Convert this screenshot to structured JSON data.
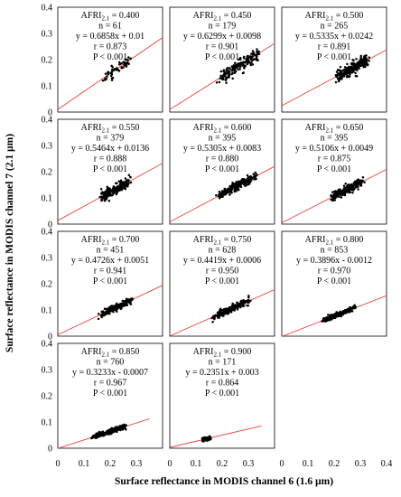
{
  "chart_data": {
    "type": "scatter",
    "layout": "small-multiples 4x3",
    "xlabel": "Surface reflectance in MODIS channel 6 (1.6 µm)",
    "ylabel": "Surface reflectance in MODIS channel 7 (2.1 µm)",
    "xlim": [
      0,
      0.4
    ],
    "ylim": [
      0,
      0.4
    ],
    "xticks": [
      "0",
      "0.1",
      "0.2",
      "0.3",
      "0.4"
    ],
    "yticks": [
      "0",
      "0.1",
      "0.2",
      "0.3",
      "0.4"
    ],
    "x_tick_row_labels": [
      "0",
      "0.1",
      "0.2",
      "0.3",
      "0",
      "0.1",
      "0.2",
      "0.3",
      "0",
      "0.1",
      "0.2",
      "0.3",
      "0.4"
    ],
    "y_tick_col_labels": [
      "0",
      "0.1",
      "0.2",
      "0.3",
      "0.4"
    ],
    "point_color": "#000000",
    "line_color": "#e8463c",
    "panels": [
      {
        "afri_label": "AFRI",
        "afri_sub": "2.1",
        "afri": "0.400",
        "n": "61",
        "eq": "y = 0.6858x + 0.01",
        "r": "0.873",
        "p": "P < 0.001",
        "slope": 0.6858,
        "intercept": 0.01,
        "points": {
          "x_range": [
            0.16,
            0.29
          ],
          "count": 61,
          "slope": 0.6858,
          "intercept": 0.01,
          "spread": 0.012
        }
      },
      {
        "afri_label": "AFRI",
        "afri_sub": "2.1",
        "afri": "0.450",
        "n": "179",
        "eq": "y = 0.6299x + 0.0098",
        "r": "0.901",
        "p": "P < 0.001",
        "slope": 0.6299,
        "intercept": 0.0098,
        "points": {
          "x_range": [
            0.16,
            0.37
          ],
          "count": 179,
          "slope": 0.6299,
          "intercept": 0.0098,
          "spread": 0.012
        }
      },
      {
        "afri_label": "AFRI",
        "afri_sub": "2.1",
        "afri": "0.500",
        "n": "265",
        "eq": "y = 0.5335x + 0.0242",
        "r": "0.891",
        "p": "P < 0.001",
        "slope": 0.5335,
        "intercept": 0.0242,
        "points": {
          "x_range": [
            0.19,
            0.35
          ],
          "count": 265,
          "slope": 0.5335,
          "intercept": 0.0242,
          "spread": 0.012
        }
      },
      {
        "afri_label": "AFRI",
        "afri_sub": "2.1",
        "afri": "0.550",
        "n": "379",
        "eq": "y = 0.5464x + 0.0136",
        "r": "0.888",
        "p": "P < 0.001",
        "slope": 0.5464,
        "intercept": 0.0136,
        "points": {
          "x_range": [
            0.14,
            0.3
          ],
          "count": 379,
          "slope": 0.5464,
          "intercept": 0.0136,
          "spread": 0.01
        }
      },
      {
        "afri_label": "AFRI",
        "afri_sub": "2.1",
        "afri": "0.600",
        "n": "395",
        "eq": "y = 0.5305x + 0.0083",
        "r": "0.880",
        "p": "P < 0.001",
        "slope": 0.5305,
        "intercept": 0.0083,
        "points": {
          "x_range": [
            0.16,
            0.35
          ],
          "count": 395,
          "slope": 0.5305,
          "intercept": 0.0083,
          "spread": 0.009
        }
      },
      {
        "afri_label": "AFRI",
        "afri_sub": "2.1",
        "afri": "0.650",
        "n": "395",
        "eq": "y = 0.5106x + 0.0049",
        "r": "0.875",
        "p": "P < 0.001",
        "slope": 0.5106,
        "intercept": 0.0049,
        "points": {
          "x_range": [
            0.17,
            0.33
          ],
          "count": 395,
          "slope": 0.5106,
          "intercept": 0.0049,
          "spread": 0.008
        }
      },
      {
        "afri_label": "AFRI",
        "afri_sub": "2.1",
        "afri": "0.700",
        "n": "451",
        "eq": "y = 0.4726x + 0.0051",
        "r": "0.941",
        "p": "P < 0.001",
        "slope": 0.4726,
        "intercept": 0.0051,
        "points": {
          "x_range": [
            0.14,
            0.3
          ],
          "count": 451,
          "slope": 0.4726,
          "intercept": 0.0051,
          "spread": 0.006
        }
      },
      {
        "afri_label": "AFRI",
        "afri_sub": "2.1",
        "afri": "0.750",
        "n": "628",
        "eq": "y = 0.4419x + 0.0006",
        "r": "0.950",
        "p": "P < 0.001",
        "slope": 0.4419,
        "intercept": 0.0006,
        "points": {
          "x_range": [
            0.14,
            0.33
          ],
          "count": 628,
          "slope": 0.4419,
          "intercept": 0.0006,
          "spread": 0.006
        }
      },
      {
        "afri_label": "AFRI",
        "afri_sub": "2.1",
        "afri": "0.800",
        "n": "853",
        "eq": "y = 0.3896x - 0.0012",
        "r": "0.970",
        "p": "P < 0.001",
        "slope": 0.3896,
        "intercept": -0.0012,
        "points": {
          "x_range": [
            0.14,
            0.3
          ],
          "count": 853,
          "slope": 0.3896,
          "intercept": -0.0012,
          "spread": 0.004
        }
      },
      {
        "afri_label": "AFRI",
        "afri_sub": "2.1",
        "afri": "0.850",
        "n": "760",
        "eq": "y = 0.3233x - 0.0007",
        "r": "0.967",
        "p": "P < 0.001",
        "slope": 0.3233,
        "intercept": -0.0007,
        "points": {
          "x_range": [
            0.11,
            0.28
          ],
          "count": 760,
          "slope": 0.3233,
          "intercept": -0.0007,
          "spread": 0.004
        }
      },
      {
        "afri_label": "AFRI",
        "afri_sub": "2.1",
        "afri": "0.900",
        "n": "171",
        "eq": "y = 0.2351x + 0.003",
        "r": "0.864",
        "p": "P < 0.001",
        "slope": 0.2351,
        "intercept": 0.003,
        "points": {
          "x_range": [
            0.12,
            0.16
          ],
          "count": 171,
          "slope": 0.2351,
          "intercept": 0.003,
          "spread": 0.003
        }
      }
    ]
  }
}
